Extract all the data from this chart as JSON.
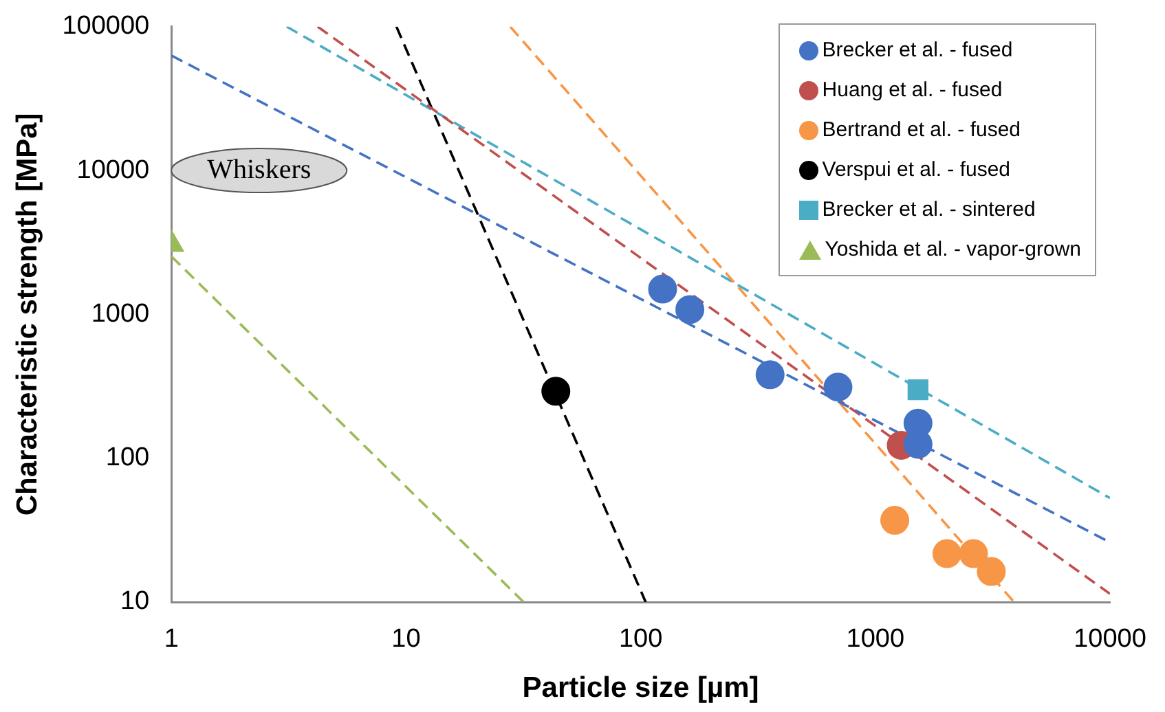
{
  "chart_data": {
    "type": "scatter",
    "xlabel": "Particle size [µm]",
    "ylabel": "Characteristic strength [MPa]",
    "log": "xy",
    "xlim": [
      1,
      10000
    ],
    "xticks": [
      1,
      10,
      100,
      1000,
      10000
    ],
    "ylim": [
      10,
      100000
    ],
    "yticks": [
      10,
      100,
      1000,
      10000,
      100000
    ],
    "grid": false,
    "legend": "top right",
    "annotations": [
      "Whiskers"
    ],
    "series": [
      {
        "name": "Brecker et al. - fused",
        "type": "scatter",
        "marker": "circle",
        "color": "#4472c4",
        "x": [
          124,
          162,
          356,
          693,
          1520,
          1520
        ],
        "values": [
          1500,
          1080,
          380,
          312,
          175,
          125
        ]
      },
      {
        "name": "Huang et al. - fused",
        "type": "scatter",
        "marker": "circle",
        "color": "#c0504d",
        "x": [
          1290
        ],
        "values": [
          123
        ]
      },
      {
        "name": "Bertrand et al. - fused",
        "type": "scatter",
        "marker": "circle",
        "color": "#f79646",
        "x": [
          1210,
          2020,
          2620,
          3120
        ],
        "values": [
          37,
          21.7,
          21.7,
          16.3
        ]
      },
      {
        "name": "Verspui et al. - fused",
        "type": "scatter",
        "marker": "circle",
        "color": "#000000",
        "x": [
          43.5
        ],
        "values": [
          292
        ]
      },
      {
        "name": "Brecker et al. - sintered",
        "type": "scatter",
        "marker": "square",
        "color": "#4bacc6",
        "x": [
          1520
        ],
        "values": [
          299
        ]
      },
      {
        "name": "Yoshida et al. - vapor-grown",
        "type": "scatter",
        "marker": "triangle",
        "color": "#9bbb59",
        "x": [
          1
        ],
        "values": [
          3070
        ]
      },
      {
        "type": "line",
        "marker": "none",
        "line_style": "dashed",
        "color": "#4472c4",
        "x": [
          1,
          10000
        ],
        "values": [
          63000,
          26
        ]
      },
      {
        "type": "line",
        "marker": "none",
        "line_style": "dashed",
        "color": "#c0504d",
        "x": [
          4.2,
          10000
        ],
        "values": [
          100000,
          11.4
        ]
      },
      {
        "type": "line",
        "marker": "none",
        "line_style": "dashed",
        "color": "#f79646",
        "x": [
          27.8,
          3900
        ],
        "values": [
          100000,
          10
        ]
      },
      {
        "type": "line",
        "marker": "none",
        "line_style": "dashed",
        "color": "#000000",
        "x": [
          9.1,
          105
        ],
        "values": [
          100000,
          10
        ]
      },
      {
        "type": "line",
        "marker": "none",
        "line_style": "dashed",
        "color": "#4bacc6",
        "x": [
          3.1,
          10000
        ],
        "values": [
          100000,
          52.8
        ]
      },
      {
        "type": "line",
        "marker": "none",
        "line_style": "dashed",
        "color": "#9bbb59",
        "x": [
          1,
          31.7
        ],
        "values": [
          2530,
          10
        ]
      }
    ]
  }
}
